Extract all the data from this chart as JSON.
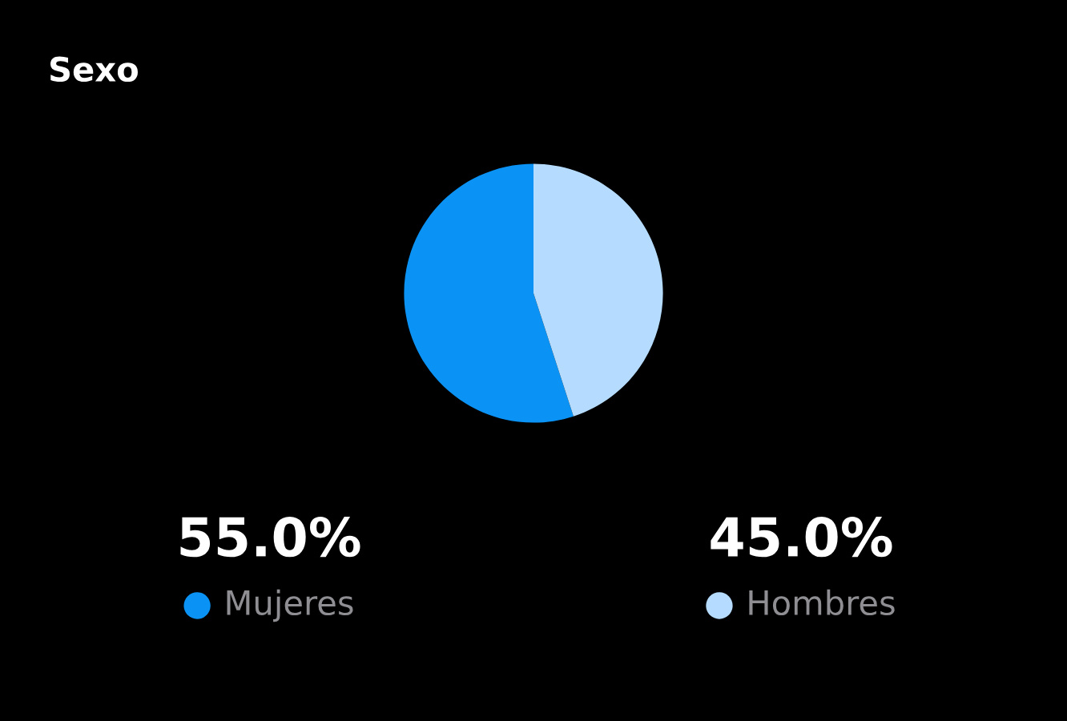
{
  "chart_data": {
    "type": "pie",
    "title": "Sexo",
    "categories": [
      "Mujeres",
      "Hombres"
    ],
    "values": [
      55,
      45
    ],
    "colors": [
      "#0a93f5",
      "#b5dcff"
    ],
    "value_labels": [
      "55.0%",
      "45.0%"
    ],
    "legend": "bottom"
  }
}
